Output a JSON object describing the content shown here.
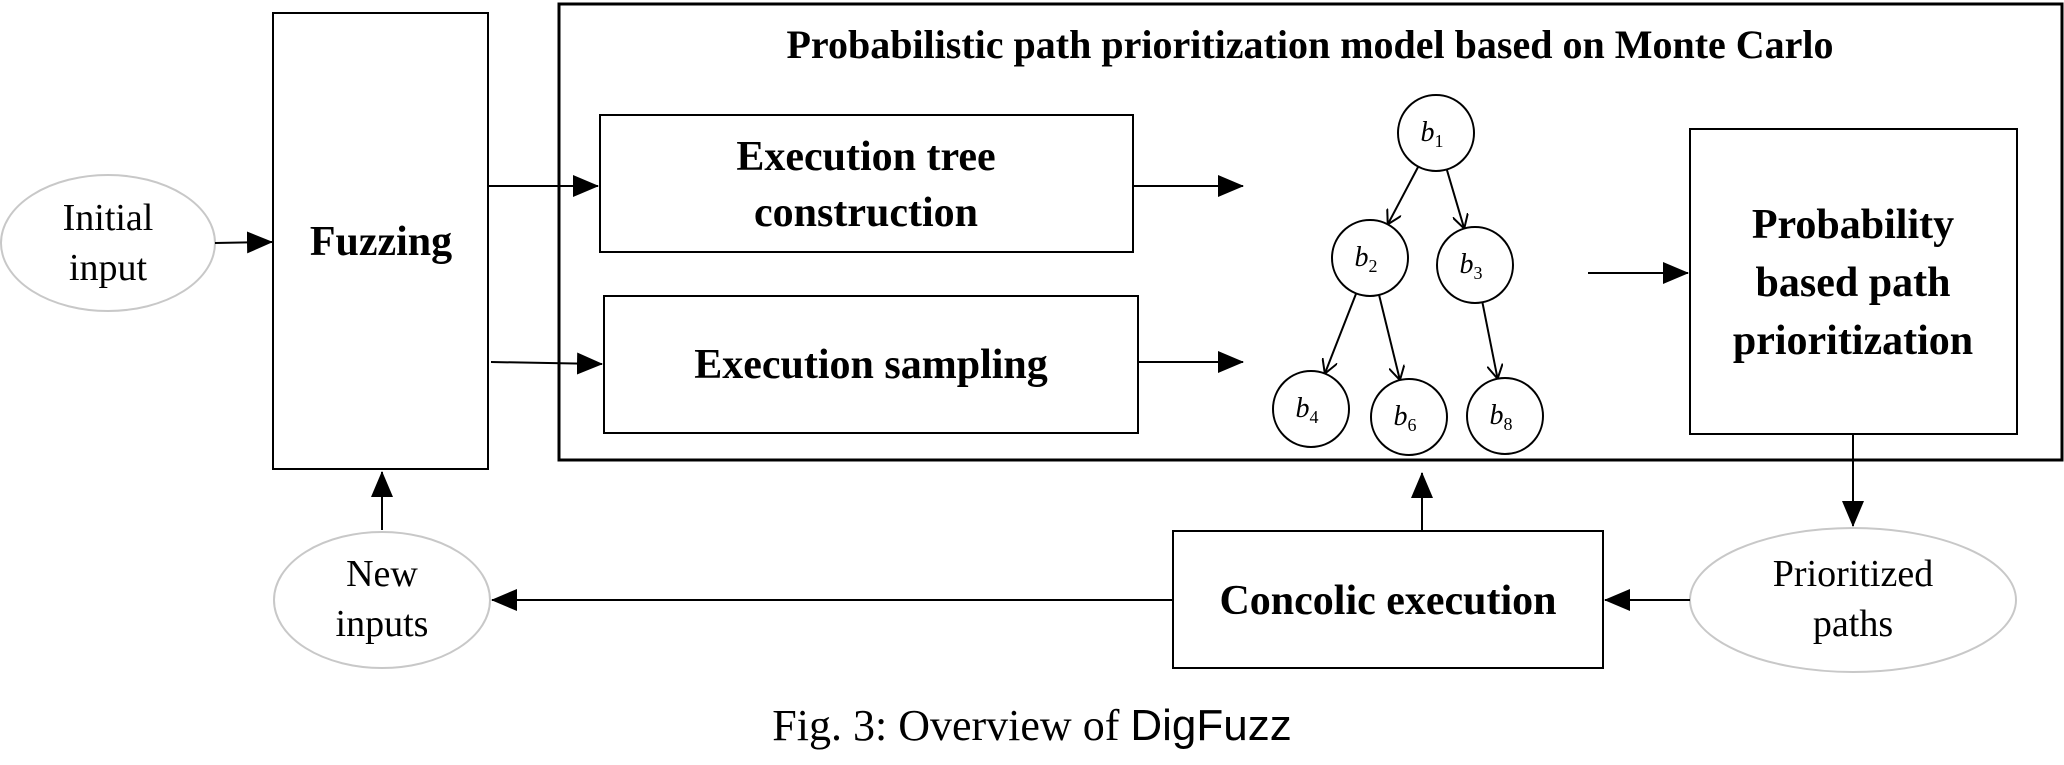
{
  "model": {
    "title": "Probabilistic path prioritization model based on Monte Carlo"
  },
  "inputs": {
    "initial": [
      "Initial",
      "input"
    ],
    "new": [
      "New",
      "inputs"
    ]
  },
  "boxes": {
    "fuzzing": "Fuzzing",
    "tree_construction": [
      "Execution tree",
      "construction"
    ],
    "sampling": "Execution sampling",
    "prioritization": [
      "Probability",
      "based path",
      "prioritization"
    ],
    "concolic": "Concolic execution"
  },
  "outputs": {
    "prioritized": [
      "Prioritized",
      "paths"
    ]
  },
  "tree": {
    "nodes": [
      {
        "id": "b1",
        "letter": "b",
        "sub": "1"
      },
      {
        "id": "b2",
        "letter": "b",
        "sub": "2"
      },
      {
        "id": "b3",
        "letter": "b",
        "sub": "3"
      },
      {
        "id": "b4",
        "letter": "b",
        "sub": "4"
      },
      {
        "id": "b6",
        "letter": "b",
        "sub": "6"
      },
      {
        "id": "b8",
        "letter": "b",
        "sub": "8"
      }
    ],
    "edges": [
      [
        "b1",
        "b2"
      ],
      [
        "b1",
        "b3"
      ],
      [
        "b2",
        "b4"
      ],
      [
        "b2",
        "b6"
      ],
      [
        "b3",
        "b8"
      ]
    ]
  },
  "caption": {
    "prefix": "Fig. 3: Overview of ",
    "tool": "DigFuzz"
  }
}
